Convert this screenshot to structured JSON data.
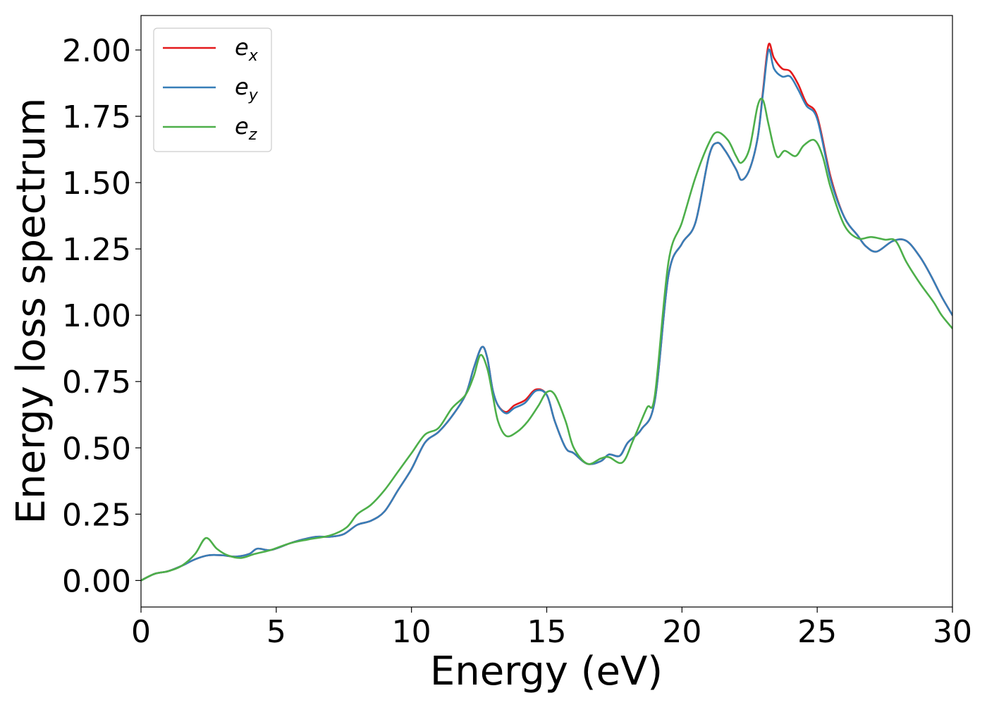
{
  "chart_data": {
    "type": "line",
    "xlabel": "Energy (eV)",
    "ylabel": "Energy loss spectrum",
    "xlim": [
      0,
      30
    ],
    "ylim": [
      -0.1,
      2.13
    ],
    "xticks": [
      0,
      5,
      10,
      15,
      20,
      25,
      30
    ],
    "xtick_labels": [
      "0",
      "5",
      "10",
      "15",
      "20",
      "25",
      "30"
    ],
    "yticks": [
      0.0,
      0.25,
      0.5,
      0.75,
      1.0,
      1.25,
      1.5,
      1.75,
      2.0
    ],
    "ytick_labels": [
      "0.00",
      "0.25",
      "0.50",
      "0.75",
      "1.00",
      "1.25",
      "1.50",
      "1.75",
      "2.00"
    ],
    "grid": false,
    "legend_position": "top-left",
    "series": [
      {
        "name_base": "e",
        "name_sub": "x",
        "color": "#e41a1c",
        "x": [
          0,
          0.5,
          1,
          1.5,
          2,
          2.5,
          3,
          3.5,
          4,
          4.3,
          4.8,
          5.5,
          6,
          6.5,
          7,
          7.5,
          8,
          8.5,
          9,
          9.5,
          10,
          10.5,
          11,
          11.5,
          12,
          12.3,
          12.6,
          12.8,
          13,
          13.2,
          13.5,
          13.8,
          14.2,
          14.6,
          15,
          15.3,
          15.7,
          16,
          16.5,
          17,
          17.3,
          17.7,
          18,
          18.5,
          19,
          19.5,
          20,
          20.5,
          21,
          21.3,
          21.6,
          22,
          22.2,
          22.5,
          22.8,
          23,
          23.2,
          23.4,
          23.7,
          24,
          24.3,
          24.6,
          25,
          25.5,
          26,
          26.5,
          26.8,
          27.2,
          27.8,
          28.3,
          28.8,
          29.2,
          29.6,
          30
        ],
        "y": [
          0.0,
          0.025,
          0.035,
          0.055,
          0.08,
          0.095,
          0.095,
          0.09,
          0.1,
          0.12,
          0.115,
          0.14,
          0.155,
          0.165,
          0.165,
          0.175,
          0.21,
          0.225,
          0.26,
          0.34,
          0.42,
          0.52,
          0.56,
          0.62,
          0.7,
          0.8,
          0.88,
          0.84,
          0.72,
          0.66,
          0.635,
          0.66,
          0.68,
          0.72,
          0.7,
          0.6,
          0.5,
          0.48,
          0.44,
          0.45,
          0.475,
          0.47,
          0.52,
          0.57,
          0.68,
          1.15,
          1.27,
          1.35,
          1.6,
          1.65,
          1.62,
          1.55,
          1.51,
          1.55,
          1.67,
          1.85,
          2.02,
          1.97,
          1.93,
          1.92,
          1.87,
          1.8,
          1.75,
          1.52,
          1.37,
          1.3,
          1.26,
          1.24,
          1.28,
          1.28,
          1.22,
          1.15,
          1.07,
          1.0
        ]
      },
      {
        "name_base": "e",
        "name_sub": "y",
        "color": "#377eb8",
        "x": [
          0,
          0.5,
          1,
          1.5,
          2,
          2.5,
          3,
          3.5,
          4,
          4.3,
          4.8,
          5.5,
          6,
          6.5,
          7,
          7.5,
          8,
          8.5,
          9,
          9.5,
          10,
          10.5,
          11,
          11.5,
          12,
          12.3,
          12.6,
          12.8,
          13,
          13.2,
          13.5,
          13.8,
          14.2,
          14.6,
          15,
          15.3,
          15.7,
          16,
          16.5,
          17,
          17.3,
          17.7,
          18,
          18.5,
          19,
          19.5,
          20,
          20.5,
          21,
          21.3,
          21.6,
          22,
          22.2,
          22.5,
          22.8,
          23,
          23.2,
          23.4,
          23.7,
          24,
          24.3,
          24.6,
          25,
          25.5,
          26,
          26.5,
          26.8,
          27.2,
          27.8,
          28.3,
          28.8,
          29.2,
          29.6,
          30
        ],
        "y": [
          0.0,
          0.025,
          0.035,
          0.055,
          0.08,
          0.095,
          0.095,
          0.09,
          0.1,
          0.12,
          0.115,
          0.14,
          0.155,
          0.165,
          0.165,
          0.175,
          0.21,
          0.225,
          0.26,
          0.34,
          0.42,
          0.52,
          0.56,
          0.62,
          0.7,
          0.8,
          0.88,
          0.84,
          0.72,
          0.66,
          0.63,
          0.65,
          0.67,
          0.715,
          0.7,
          0.6,
          0.5,
          0.48,
          0.44,
          0.45,
          0.475,
          0.47,
          0.52,
          0.57,
          0.68,
          1.15,
          1.27,
          1.35,
          1.6,
          1.65,
          1.62,
          1.55,
          1.51,
          1.55,
          1.67,
          1.84,
          2.0,
          1.93,
          1.9,
          1.9,
          1.85,
          1.79,
          1.74,
          1.51,
          1.37,
          1.3,
          1.26,
          1.24,
          1.28,
          1.28,
          1.22,
          1.15,
          1.07,
          1.0
        ]
      },
      {
        "name_base": "e",
        "name_sub": "z",
        "color": "#4daf4a",
        "x": [
          0,
          0.5,
          1,
          1.5,
          2,
          2.4,
          2.8,
          3.2,
          3.7,
          4.2,
          4.8,
          5.5,
          6.2,
          7,
          7.6,
          8,
          8.5,
          9,
          9.5,
          10,
          10.5,
          11,
          11.5,
          12,
          12.3,
          12.55,
          12.8,
          13,
          13.2,
          13.5,
          13.9,
          14.3,
          14.7,
          15,
          15.3,
          15.7,
          16,
          16.5,
          17,
          17.3,
          17.8,
          18.2,
          18.7,
          19,
          19.5,
          20,
          20.5,
          21,
          21.3,
          21.7,
          22,
          22.2,
          22.5,
          22.8,
          23,
          23.2,
          23.5,
          23.8,
          24.2,
          24.5,
          24.9,
          25.2,
          25.5,
          26,
          26.5,
          27,
          27.5,
          27.9,
          28.3,
          28.8,
          29.3,
          29.6,
          30
        ],
        "y": [
          0.0,
          0.025,
          0.035,
          0.055,
          0.1,
          0.16,
          0.12,
          0.095,
          0.085,
          0.1,
          0.115,
          0.14,
          0.155,
          0.17,
          0.2,
          0.25,
          0.285,
          0.34,
          0.41,
          0.48,
          0.55,
          0.575,
          0.65,
          0.7,
          0.77,
          0.85,
          0.8,
          0.7,
          0.6,
          0.545,
          0.56,
          0.6,
          0.66,
          0.71,
          0.7,
          0.6,
          0.5,
          0.44,
          0.46,
          0.465,
          0.445,
          0.53,
          0.65,
          0.7,
          1.2,
          1.35,
          1.52,
          1.65,
          1.69,
          1.66,
          1.6,
          1.575,
          1.63,
          1.79,
          1.81,
          1.72,
          1.6,
          1.62,
          1.6,
          1.64,
          1.66,
          1.6,
          1.48,
          1.34,
          1.29,
          1.295,
          1.285,
          1.28,
          1.2,
          1.12,
          1.05,
          1.0,
          0.95
        ]
      }
    ]
  }
}
